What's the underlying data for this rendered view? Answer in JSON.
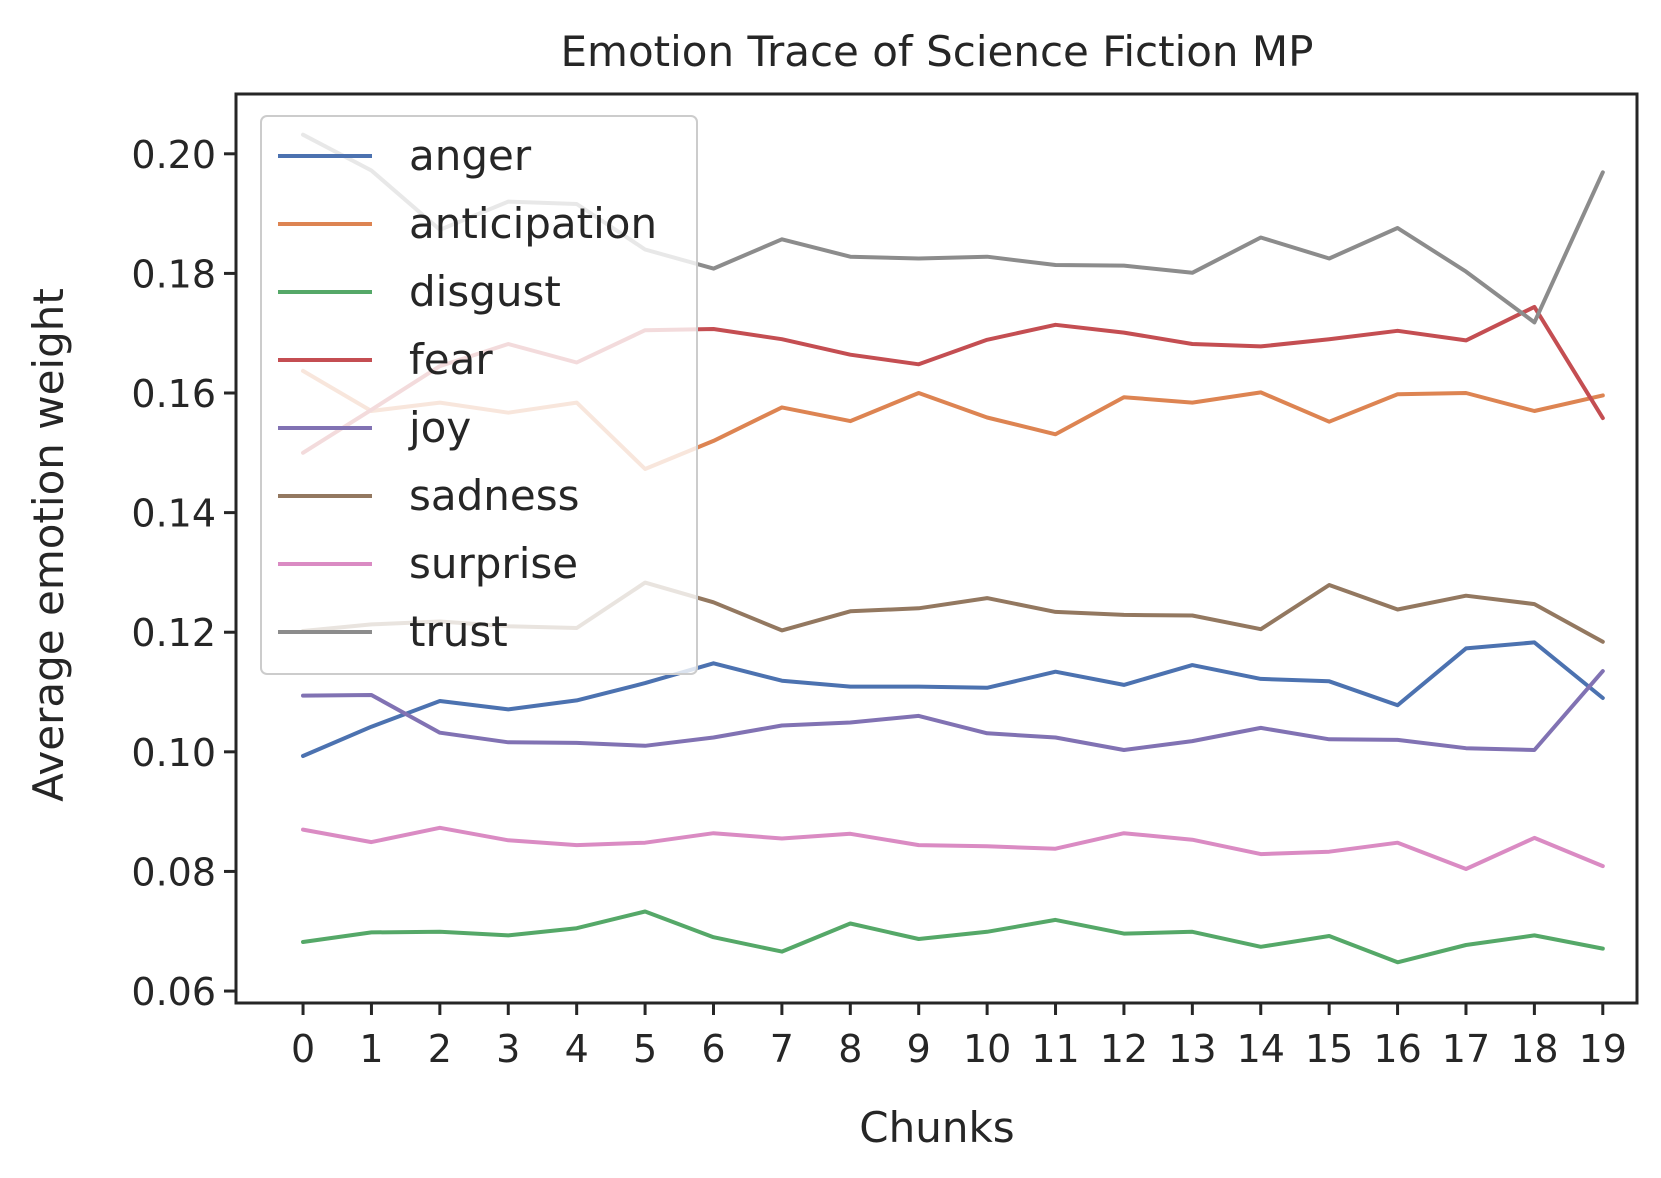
{
  "chart_data": {
    "type": "line",
    "title": "Emotion Trace of Science Fiction MP",
    "xlabel": "Chunks",
    "ylabel": "Average emotion weight",
    "x": [
      0,
      1,
      2,
      3,
      4,
      5,
      6,
      7,
      8,
      9,
      10,
      11,
      12,
      13,
      14,
      15,
      16,
      17,
      18,
      19
    ],
    "xlim": [
      -0.98,
      19.5
    ],
    "ylim": [
      0.058,
      0.21
    ],
    "yticks": [
      "0.06",
      "0.08",
      "0.10",
      "0.12",
      "0.14",
      "0.16",
      "0.18",
      "0.20"
    ],
    "grid": false,
    "legend_position": "upper-left",
    "series": [
      {
        "name": "anger",
        "color": "#4c72b0",
        "values": [
          0.0993,
          0.1042,
          0.1085,
          0.1071,
          0.1086,
          0.1115,
          0.1148,
          0.1119,
          0.1109,
          0.1109,
          0.1107,
          0.1134,
          0.1112,
          0.1145,
          0.1122,
          0.1118,
          0.1078,
          0.1173,
          0.1183,
          0.109
        ]
      },
      {
        "name": "anticipation",
        "color": "#dd8452",
        "values": [
          0.1637,
          0.157,
          0.1584,
          0.1567,
          0.1584,
          0.1473,
          0.152,
          0.1576,
          0.1553,
          0.16,
          0.1559,
          0.1531,
          0.1593,
          0.1584,
          0.1601,
          0.1552,
          0.1598,
          0.16,
          0.157,
          0.1596
        ]
      },
      {
        "name": "disgust",
        "color": "#55a868",
        "values": [
          0.0682,
          0.0698,
          0.0699,
          0.0693,
          0.0705,
          0.0733,
          0.069,
          0.0666,
          0.0713,
          0.0687,
          0.0699,
          0.0719,
          0.0696,
          0.0699,
          0.0674,
          0.0692,
          0.0648,
          0.0677,
          0.0693,
          0.0671
        ]
      },
      {
        "name": "fear",
        "color": "#c44e52",
        "values": [
          0.15,
          0.1572,
          0.1645,
          0.1682,
          0.1651,
          0.1705,
          0.1707,
          0.169,
          0.1664,
          0.1648,
          0.1689,
          0.1714,
          0.1701,
          0.1682,
          0.1678,
          0.169,
          0.1704,
          0.1688,
          0.1744,
          0.1558
        ]
      },
      {
        "name": "joy",
        "color": "#8172b3",
        "values": [
          0.1094,
          0.1095,
          0.1032,
          0.1016,
          0.1015,
          0.101,
          0.1024,
          0.1044,
          0.1049,
          0.106,
          0.1031,
          0.1024,
          0.1003,
          0.1018,
          0.104,
          0.1021,
          0.102,
          0.1006,
          0.1003,
          0.1135
        ]
      },
      {
        "name": "sadness",
        "color": "#937860",
        "values": [
          0.1202,
          0.1213,
          0.1218,
          0.121,
          0.1207,
          0.1283,
          0.125,
          0.1203,
          0.1235,
          0.124,
          0.1257,
          0.1234,
          0.1229,
          0.1228,
          0.1205,
          0.1279,
          0.1238,
          0.1261,
          0.1247,
          0.1184
        ]
      },
      {
        "name": "surprise",
        "color": "#da8bc3",
        "values": [
          0.087,
          0.0849,
          0.0873,
          0.0852,
          0.0844,
          0.0848,
          0.0864,
          0.0855,
          0.0863,
          0.0844,
          0.0842,
          0.0838,
          0.0864,
          0.0853,
          0.0829,
          0.0833,
          0.0848,
          0.0804,
          0.0856,
          0.0809
        ]
      },
      {
        "name": "trust",
        "color": "#8c8c8c",
        "values": [
          0.2032,
          0.1972,
          0.1873,
          0.192,
          0.1916,
          0.184,
          0.1808,
          0.1857,
          0.1828,
          0.1825,
          0.1828,
          0.1814,
          0.1813,
          0.1801,
          0.186,
          0.1825,
          0.1876,
          0.1803,
          0.1718,
          0.1969
        ]
      }
    ]
  }
}
